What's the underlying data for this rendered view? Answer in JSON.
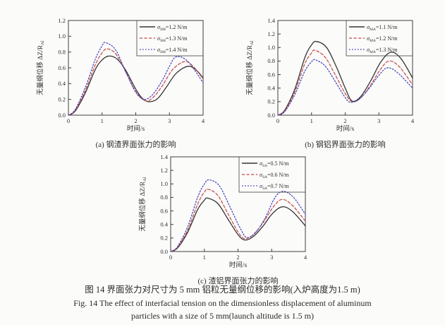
{
  "figure": {
    "caption_zh": "图 14  界面张力对尺寸为 5 mm 铝粒无量纲位移的影响(入炉高度为1.5 m)",
    "caption_en_line1": "Fig. 14   The effect of interfacial tension on the dimensionless displacement of aluminum",
    "caption_en_line2": "particles with a size of 5 mm(launch altitude is 1.5 m)"
  },
  "styles": {
    "axis_color": "#3f3f3f",
    "text_color": "#2e2e2e",
    "background": "#fbfbfa",
    "series_black": "#343434",
    "series_red": "#c4473f",
    "series_blue": "#3f3fbe"
  },
  "chart_data": [
    {
      "id": "a",
      "type": "line",
      "subcaption": "(a) 钢渣界面张力的影响",
      "xlabel": "时间/s",
      "ylabel": "无量纲位移 ΔZ/R",
      "ylabel_sub": "Al",
      "xlim": [
        0,
        4
      ],
      "ylim": [
        0,
        1.2
      ],
      "xticks": [
        0,
        1,
        2,
        3,
        4
      ],
      "xtick_labels": [
        "0",
        "1",
        "2",
        "3",
        "4"
      ],
      "yticks": [
        0.0,
        0.2,
        0.4,
        0.6,
        0.8,
        1.0,
        1.2
      ],
      "ytick_labels": [
        "0.0",
        "0.2",
        "0.4",
        "0.6",
        "0.8",
        "1.0",
        "1.2"
      ],
      "grid": false,
      "legend_position": "top-right",
      "series": [
        {
          "sigma": "σ",
          "sub": "SM",
          "rest": "=1.2 N/m",
          "style": "solid",
          "color": "#343434",
          "points": [
            [
              0,
              0
            ],
            [
              0.2,
              0.05
            ],
            [
              0.5,
              0.28
            ],
            [
              0.8,
              0.58
            ],
            [
              1.0,
              0.7
            ],
            [
              1.2,
              0.75
            ],
            [
              1.45,
              0.71
            ],
            [
              1.7,
              0.57
            ],
            [
              2.0,
              0.33
            ],
            [
              2.2,
              0.21
            ],
            [
              2.4,
              0.17
            ],
            [
              2.65,
              0.21
            ],
            [
              2.9,
              0.35
            ],
            [
              3.2,
              0.53
            ],
            [
              3.55,
              0.62
            ],
            [
              3.8,
              0.57
            ],
            [
              4,
              0.47
            ]
          ]
        },
        {
          "sigma": "σ",
          "sub": "SM",
          "rest": "=1.3 N/m",
          "style": "dashed",
          "color": "#c4473f",
          "points": [
            [
              0,
              0
            ],
            [
              0.2,
              0.06
            ],
            [
              0.5,
              0.31
            ],
            [
              0.8,
              0.64
            ],
            [
              1.0,
              0.79
            ],
            [
              1.15,
              0.84
            ],
            [
              1.4,
              0.78
            ],
            [
              1.7,
              0.55
            ],
            [
              2.0,
              0.3
            ],
            [
              2.3,
              0.18
            ],
            [
              2.55,
              0.24
            ],
            [
              2.8,
              0.38
            ],
            [
              3.1,
              0.58
            ],
            [
              3.45,
              0.68
            ],
            [
              3.7,
              0.62
            ],
            [
              4,
              0.46
            ]
          ]
        },
        {
          "sigma": "σ",
          "sub": "SM",
          "rest": "=1.4 N/m",
          "style": "dotted",
          "color": "#3f3fbe",
          "points": [
            [
              0,
              0
            ],
            [
              0.2,
              0.07
            ],
            [
              0.5,
              0.35
            ],
            [
              0.8,
              0.71
            ],
            [
              1.0,
              0.88
            ],
            [
              1.1,
              0.92
            ],
            [
              1.4,
              0.83
            ],
            [
              1.7,
              0.55
            ],
            [
              2.0,
              0.29
            ],
            [
              2.25,
              0.2
            ],
            [
              2.5,
              0.26
            ],
            [
              2.8,
              0.45
            ],
            [
              3.0,
              0.62
            ],
            [
              3.2,
              0.74
            ],
            [
              3.55,
              0.68
            ],
            [
              4,
              0.41
            ]
          ]
        }
      ]
    },
    {
      "id": "b",
      "type": "line",
      "subcaption": "(b) 钢铝界面张力的影响",
      "xlabel": "时间/s",
      "ylabel": "无量纲位移 ΔZ/R",
      "ylabel_sub": "Al",
      "xlim": [
        0,
        4
      ],
      "ylim": [
        0,
        1.4
      ],
      "xticks": [
        0,
        1,
        2,
        3,
        4
      ],
      "xtick_labels": [
        "0",
        "1",
        "2",
        "3",
        "4"
      ],
      "yticks": [
        0.0,
        0.2,
        0.4,
        0.6,
        0.8,
        1.0,
        1.2,
        1.4
      ],
      "ytick_labels": [
        "0.0",
        "0.2",
        "0.4",
        "0.6",
        "0.8",
        "1.0",
        "1.2",
        "1.4"
      ],
      "grid": false,
      "legend_position": "top-right",
      "series": [
        {
          "sigma": "σ",
          "sub": "MA",
          "rest": "=1.1 N/m",
          "style": "solid",
          "color": "#343434",
          "points": [
            [
              0,
              0
            ],
            [
              0.2,
              0.07
            ],
            [
              0.5,
              0.38
            ],
            [
              0.8,
              0.85
            ],
            [
              1.0,
              1.04
            ],
            [
              1.15,
              1.09
            ],
            [
              1.45,
              1.0
            ],
            [
              1.75,
              0.7
            ],
            [
              2.0,
              0.4
            ],
            [
              2.2,
              0.21
            ],
            [
              2.45,
              0.27
            ],
            [
              2.75,
              0.5
            ],
            [
              3.05,
              0.78
            ],
            [
              3.35,
              0.93
            ],
            [
              3.65,
              0.84
            ],
            [
              4,
              0.55
            ]
          ]
        },
        {
          "sigma": "σ",
          "sub": "MA",
          "rest": "=1.2 N/m",
          "style": "dashed",
          "color": "#c4473f",
          "points": [
            [
              0,
              0
            ],
            [
              0.2,
              0.06
            ],
            [
              0.5,
              0.34
            ],
            [
              0.8,
              0.76
            ],
            [
              1.0,
              0.92
            ],
            [
              1.1,
              0.96
            ],
            [
              1.4,
              0.86
            ],
            [
              1.7,
              0.6
            ],
            [
              2.0,
              0.32
            ],
            [
              2.2,
              0.2
            ],
            [
              2.45,
              0.25
            ],
            [
              2.75,
              0.44
            ],
            [
              3.05,
              0.68
            ],
            [
              3.3,
              0.8
            ],
            [
              3.6,
              0.72
            ],
            [
              4,
              0.45
            ]
          ]
        },
        {
          "sigma": "σ",
          "sub": "MA",
          "rest": "=1.3 N/m",
          "style": "dotted",
          "color": "#3f3fbe",
          "points": [
            [
              0,
              0
            ],
            [
              0.2,
              0.05
            ],
            [
              0.5,
              0.3
            ],
            [
              0.8,
              0.65
            ],
            [
              1.0,
              0.79
            ],
            [
              1.1,
              0.82
            ],
            [
              1.4,
              0.73
            ],
            [
              1.7,
              0.5
            ],
            [
              2.0,
              0.26
            ],
            [
              2.15,
              0.19
            ],
            [
              2.4,
              0.23
            ],
            [
              2.7,
              0.39
            ],
            [
              3.0,
              0.59
            ],
            [
              3.25,
              0.7
            ],
            [
              3.55,
              0.63
            ],
            [
              4,
              0.4
            ]
          ]
        }
      ]
    },
    {
      "id": "c",
      "type": "line",
      "subcaption": "(c) 渣铝界面张力的影响",
      "xlabel": "时间/s",
      "ylabel": "无量纲位移 ΔZ/R",
      "ylabel_sub": "Al",
      "xlim": [
        0,
        4
      ],
      "ylim": [
        0,
        1.4
      ],
      "xticks": [
        0,
        1,
        2,
        3,
        4
      ],
      "xtick_labels": [
        "0",
        "1",
        "2",
        "3",
        "4"
      ],
      "yticks": [
        0.0,
        0.2,
        0.4,
        0.6,
        0.8,
        1.0,
        1.2,
        1.4
      ],
      "ytick_labels": [
        "0.0",
        "0.2",
        "0.4",
        "0.6",
        "0.8",
        "1.0",
        "1.2",
        "1.4"
      ],
      "grid": false,
      "legend_position": "top-right",
      "series": [
        {
          "sigma": "σ",
          "sub": "SA",
          "rest": "=0.5 N/m",
          "style": "solid",
          "color": "#343434",
          "points": [
            [
              0,
              0
            ],
            [
              0.2,
              0.05
            ],
            [
              0.5,
              0.28
            ],
            [
              0.8,
              0.62
            ],
            [
              1.0,
              0.76
            ],
            [
              1.1,
              0.79
            ],
            [
              1.4,
              0.71
            ],
            [
              1.7,
              0.48
            ],
            [
              2.0,
              0.25
            ],
            [
              2.2,
              0.17
            ],
            [
              2.45,
              0.22
            ],
            [
              2.75,
              0.38
            ],
            [
              3.0,
              0.55
            ],
            [
              3.3,
              0.66
            ],
            [
              3.6,
              0.6
            ],
            [
              4,
              0.38
            ]
          ]
        },
        {
          "sigma": "σ",
          "sub": "SA",
          "rest": "=0.6 N/m",
          "style": "dashed",
          "color": "#c4473f",
          "points": [
            [
              0,
              0
            ],
            [
              0.2,
              0.06
            ],
            [
              0.5,
              0.31
            ],
            [
              0.8,
              0.7
            ],
            [
              1.0,
              0.88
            ],
            [
              1.12,
              0.92
            ],
            [
              1.4,
              0.83
            ],
            [
              1.7,
              0.56
            ],
            [
              2.0,
              0.29
            ],
            [
              2.2,
              0.19
            ],
            [
              2.45,
              0.25
            ],
            [
              2.75,
              0.43
            ],
            [
              3.05,
              0.66
            ],
            [
              3.3,
              0.77
            ],
            [
              3.6,
              0.69
            ],
            [
              4,
              0.45
            ]
          ]
        },
        {
          "sigma": "σ",
          "sub": "SA",
          "rest": "=0.7 N/m",
          "style": "dotted",
          "color": "#3f3fbe",
          "points": [
            [
              0,
              0
            ],
            [
              0.2,
              0.07
            ],
            [
              0.5,
              0.36
            ],
            [
              0.8,
              0.8
            ],
            [
              1.0,
              1.0
            ],
            [
              1.15,
              1.06
            ],
            [
              1.45,
              0.97
            ],
            [
              1.75,
              0.67
            ],
            [
              2.05,
              0.36
            ],
            [
              2.25,
              0.21
            ],
            [
              2.5,
              0.27
            ],
            [
              2.8,
              0.49
            ],
            [
              3.1,
              0.8
            ],
            [
              3.35,
              0.89
            ],
            [
              3.65,
              0.8
            ],
            [
              4,
              0.55
            ]
          ]
        }
      ]
    }
  ]
}
